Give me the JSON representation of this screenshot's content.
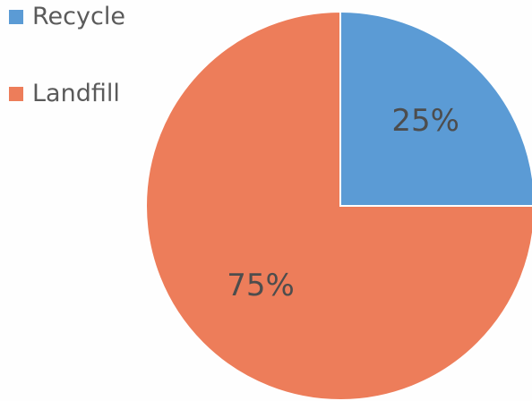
{
  "chart_data": {
    "type": "pie",
    "title": "",
    "legend_placement": "left",
    "slices": [
      {
        "name": "Recycle",
        "value": 25,
        "label": "25%",
        "color": "#5b9bd5"
      },
      {
        "name": "Landfill",
        "value": 75,
        "label": "75%",
        "color": "#ed7d5a"
      }
    ]
  }
}
